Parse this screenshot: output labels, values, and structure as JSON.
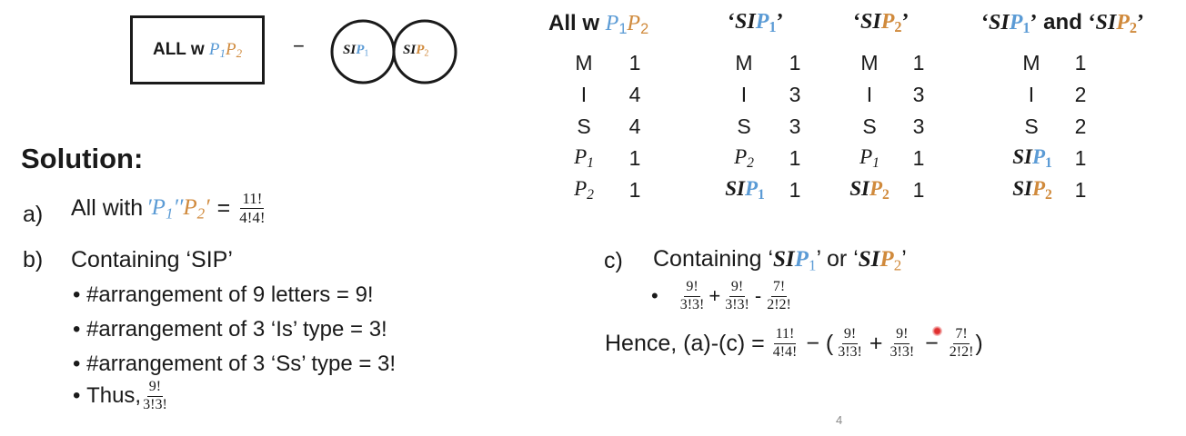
{
  "diagram": {
    "box_label_prefix": "ALL w ",
    "box_p1": "P",
    "box_p1_sub": "1",
    "box_p2": "P",
    "box_p2_sub": "2",
    "minus": "−",
    "circle1_text": "SI",
    "circle1_p": "P",
    "circle1_sub": "1",
    "circle2_text": "SI",
    "circle2_p": "P",
    "circle2_sub": "2"
  },
  "solution": {
    "heading": "Solution:",
    "a_marker": "a)",
    "a_text": "All with ",
    "a_quote_open": "′",
    "a_p1": "P",
    "a_p1_sub": "1",
    "a_quote_mid": "′′",
    "a_p2": "P",
    "a_p2_sub": "2",
    "a_quote_close": "′",
    "a_equals": "=",
    "a_num": "11!",
    "a_den": "4!4!",
    "b_marker": "b)",
    "b_text": "Containing ‘SIP’",
    "b_bullets": [
      "#arrangement of 9 letters = 9!",
      "#arrangement of 3 ‘Is’ type = 3!",
      "#arrangement of 3 ‘Ss’ type = 3!"
    ],
    "b_thus": "Thus, ",
    "b_thus_num": "9!",
    "b_thus_den": "3!3!",
    "c_marker": "c)",
    "c_text": "Containing ‘",
    "c_si1": "SI",
    "c_p1": "P",
    "c_sub1": "1",
    "c_mid": "’ or ‘",
    "c_si2": "SI",
    "c_p2": "P",
    "c_sub2": "2",
    "c_end": "’",
    "c_f1_num": "9!",
    "c_f1_den": "3!3!",
    "c_plus": "+",
    "c_f2_num": "9!",
    "c_f2_den": "3!3!",
    "c_minus": "-",
    "c_f3_num": "7!",
    "c_f3_den": "2!2!",
    "hence_text": "Hence, (a)-(c) = ",
    "h_f1_num": "11!",
    "h_f1_den": "4!4!",
    "h_minus": "− (",
    "h_f2_num": "9!",
    "h_f2_den": "3!3!",
    "h_plus": "+",
    "h_f3_num": "9!",
    "h_f3_den": "3!3!",
    "h_minus2": "−",
    "h_f4_num": "7!",
    "h_f4_den": "2!2!",
    "h_close": ")"
  },
  "table": {
    "headers": {
      "all_prefix": "All w ",
      "q_open": "‘",
      "q_close": "’",
      "si": "SI",
      "p": "P",
      "sub1": "1",
      "sub2": "2",
      "and": " and "
    },
    "col1_letters": [
      "M",
      "I",
      "S",
      "P",
      "P"
    ],
    "col1_subs": [
      "",
      "",
      "",
      "1",
      "2"
    ],
    "col1_counts": [
      "1",
      "4",
      "4",
      "1",
      "1"
    ],
    "col2_letters": [
      "M",
      "I",
      "S",
      "P"
    ],
    "col2_subs": [
      "",
      "",
      "",
      "2"
    ],
    "col2_counts": [
      "1",
      "3",
      "3",
      "1",
      "1"
    ],
    "col3_letters": [
      "M",
      "I",
      "S",
      "P"
    ],
    "col3_subs": [
      "",
      "",
      "",
      "1"
    ],
    "col3_counts": [
      "1",
      "3",
      "3",
      "1",
      "1"
    ],
    "col4_letters": [
      "M",
      "I",
      "S"
    ],
    "col4_counts": [
      "1",
      "2",
      "2",
      "1",
      "1"
    ]
  },
  "page_number": "4",
  "colors": {
    "p1": "#5b9bd5",
    "p2": "#d08a3c"
  }
}
